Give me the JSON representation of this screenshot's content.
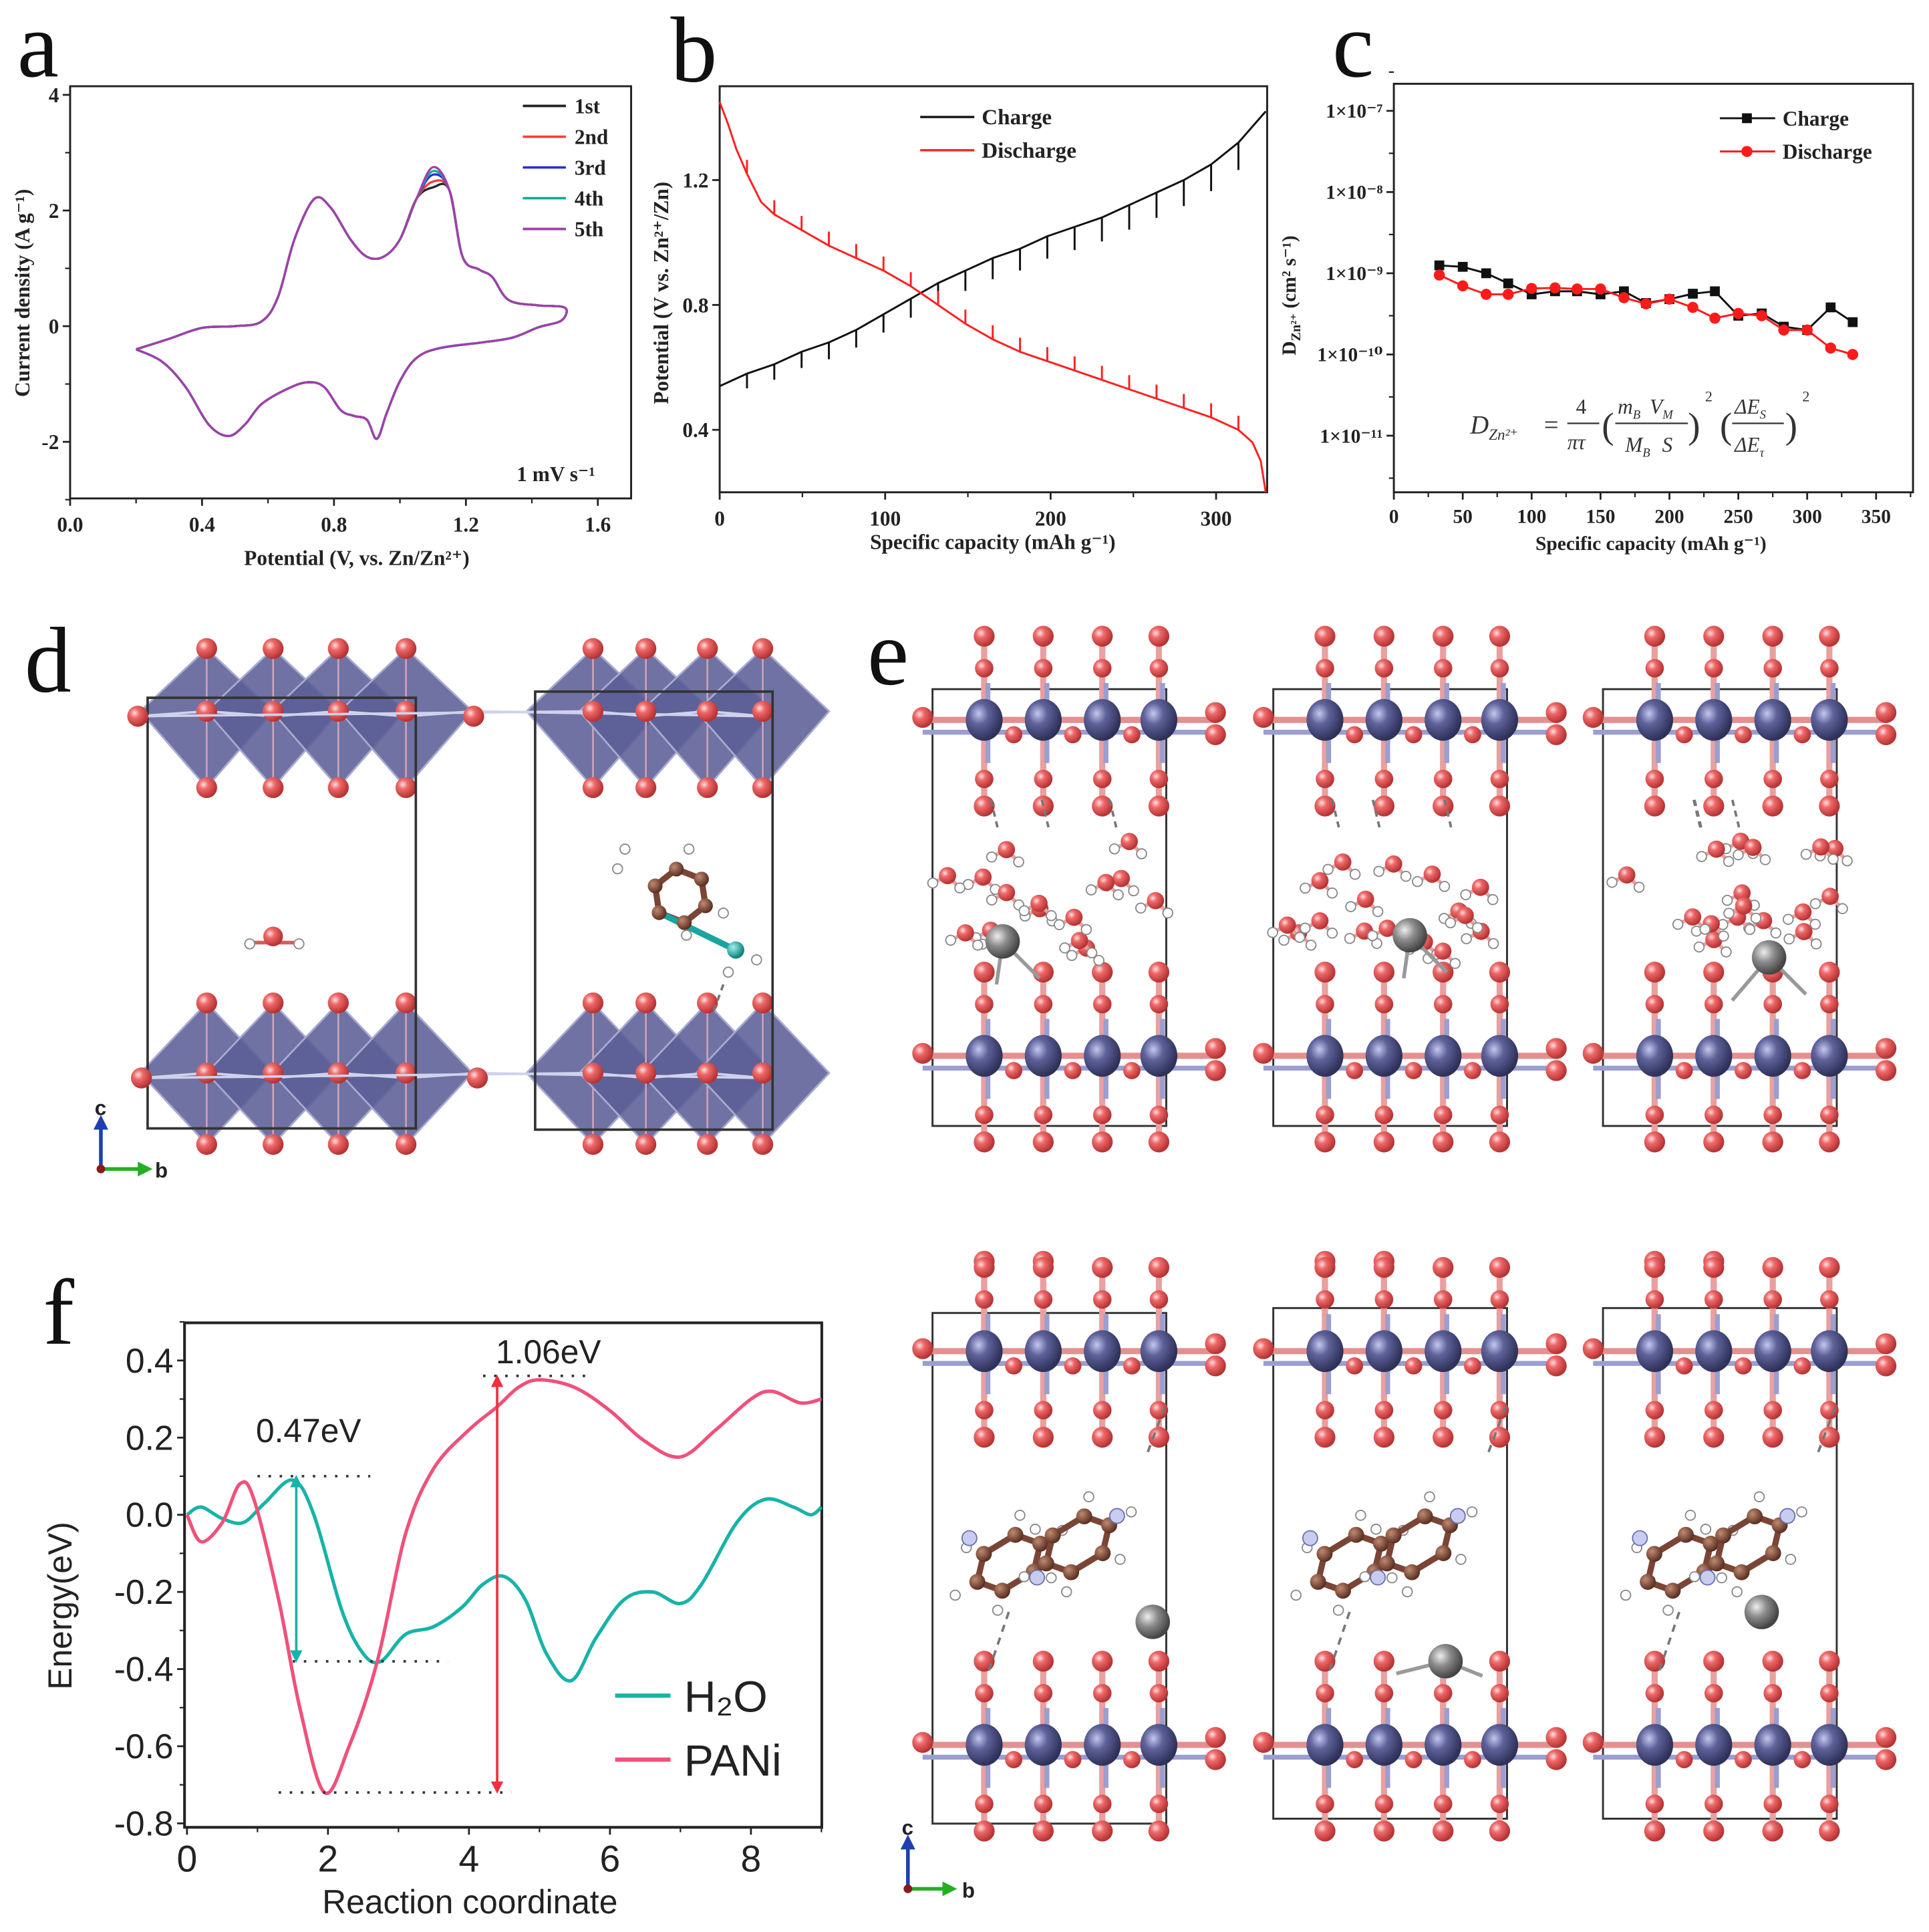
{
  "panel_labels": {
    "a": "a",
    "b": "b",
    "c": "c",
    "d": "d",
    "e": "e",
    "f": "f"
  },
  "structures": {
    "d_axes": {
      "c": "c",
      "a": "a",
      "b": "b"
    },
    "e_axes": {
      "c": "c",
      "a": "a",
      "b": "b"
    },
    "colors": {
      "oxygen": "#e0585a",
      "vanadium": "#5a5e96",
      "carbon": "#7a4536",
      "nitrogen": "#1aa5a0",
      "zinc": "#8a8a8a",
      "hydrogen": "#ffffff",
      "polyhedra": "#5b5f95"
    }
  },
  "chart_data": [
    {
      "panel": "a",
      "type": "line",
      "title": "",
      "xlabel": "Potential (V, vs. Zn/Zn²⁺)",
      "ylabel": "Current density (A g⁻¹)",
      "xlim": [
        0,
        1.7
      ],
      "ylim": [
        -3,
        4.15
      ],
      "xticks": [
        "0.0",
        "0.4",
        "0.8",
        "1.2",
        "1.6"
      ],
      "yticks": [
        "-2",
        "0",
        "2",
        "4"
      ],
      "annotation": "1 mV s⁻¹",
      "legend_position": "top-right",
      "base_curve": [
        [
          0.2,
          -0.4
        ],
        [
          0.3,
          -0.22
        ],
        [
          0.4,
          -0.03
        ],
        [
          0.5,
          0.0
        ],
        [
          0.58,
          0.08
        ],
        [
          0.63,
          0.5
        ],
        [
          0.68,
          1.5
        ],
        [
          0.74,
          2.2
        ],
        [
          0.79,
          2.05
        ],
        [
          0.85,
          1.5
        ],
        [
          0.9,
          1.2
        ],
        [
          0.95,
          1.2
        ],
        [
          1.0,
          1.5
        ],
        [
          1.05,
          2.2
        ],
        [
          1.1,
          2.6
        ],
        [
          1.15,
          2.35
        ],
        [
          1.19,
          1.2
        ],
        [
          1.24,
          0.98
        ],
        [
          1.28,
          0.85
        ],
        [
          1.33,
          0.45
        ],
        [
          1.42,
          0.36
        ],
        [
          1.5,
          0.32
        ],
        [
          1.49,
          0.1
        ],
        [
          1.42,
          -0.02
        ],
        [
          1.34,
          -0.2
        ],
        [
          1.25,
          -0.28
        ],
        [
          1.12,
          -0.38
        ],
        [
          1.05,
          -0.55
        ],
        [
          1.0,
          -0.95
        ],
        [
          0.96,
          -1.5
        ],
        [
          0.93,
          -1.95
        ],
        [
          0.9,
          -1.62
        ],
        [
          0.86,
          -1.55
        ],
        [
          0.82,
          -1.45
        ],
        [
          0.77,
          -1.05
        ],
        [
          0.72,
          -0.97
        ],
        [
          0.66,
          -1.08
        ],
        [
          0.58,
          -1.35
        ],
        [
          0.53,
          -1.7
        ],
        [
          0.48,
          -1.9
        ],
        [
          0.42,
          -1.7
        ],
        [
          0.35,
          -1.05
        ],
        [
          0.28,
          -0.62
        ],
        [
          0.2,
          -0.4
        ]
      ],
      "series": [
        {
          "name": "1st",
          "color": "#222222",
          "anodic_peak": 2.4
        },
        {
          "name": "2nd",
          "color": "#ff3b3b",
          "anodic_peak": 2.5
        },
        {
          "name": "3rd",
          "color": "#2b2bd6",
          "anodic_peak": 2.62
        },
        {
          "name": "4th",
          "color": "#12a89a",
          "anodic_peak": 2.68
        },
        {
          "name": "5th",
          "color": "#a040a8",
          "anodic_peak": 2.75
        }
      ]
    },
    {
      "panel": "b",
      "type": "line",
      "xlabel": "Specific capacity (mAh g⁻¹)",
      "ylabel": "Potential (V vs. Zn²⁺/Zn)",
      "xlim": [
        0,
        330
      ],
      "ylim": [
        0.2,
        1.5
      ],
      "xticks": [
        "0",
        "100",
        "200",
        "300"
      ],
      "yticks": [
        "0.4",
        "0.8",
        "1.2"
      ],
      "legend_position": "top-center",
      "series": [
        {
          "name": "Charge",
          "color": "#111111",
          "relaxation_amplitude": -0.045,
          "points": [
            [
              0,
              0.54
            ],
            [
              16.5,
              0.58
            ],
            [
              33,
              0.61
            ],
            [
              49.5,
              0.65
            ],
            [
              66,
              0.68
            ],
            [
              82.5,
              0.72
            ],
            [
              99,
              0.77
            ],
            [
              115.5,
              0.82
            ],
            [
              132,
              0.87
            ],
            [
              148.5,
              0.91
            ],
            [
              165,
              0.95
            ],
            [
              181.5,
              0.98
            ],
            [
              198,
              1.02
            ],
            [
              214.5,
              1.05
            ],
            [
              231,
              1.08
            ],
            [
              247.5,
              1.12
            ],
            [
              264,
              1.16
            ],
            [
              280.5,
              1.2
            ],
            [
              297,
              1.25
            ],
            [
              313.5,
              1.32
            ],
            [
              330,
              1.42
            ]
          ]
        },
        {
          "name": "Discharge",
          "color": "#ff2020",
          "relaxation_amplitude": 0.045,
          "points": [
            [
              0,
              1.45
            ],
            [
              5,
              1.38
            ],
            [
              10,
              1.3
            ],
            [
              16.5,
              1.22
            ],
            [
              25,
              1.13
            ],
            [
              33,
              1.09
            ],
            [
              49.5,
              1.04
            ],
            [
              66,
              0.99
            ],
            [
              82.5,
              0.95
            ],
            [
              99,
              0.91
            ],
            [
              115.5,
              0.86
            ],
            [
              132,
              0.8
            ],
            [
              148.5,
              0.74
            ],
            [
              165,
              0.69
            ],
            [
              181.5,
              0.65
            ],
            [
              198,
              0.62
            ],
            [
              214.5,
              0.59
            ],
            [
              231,
              0.56
            ],
            [
              247.5,
              0.53
            ],
            [
              264,
              0.5
            ],
            [
              280.5,
              0.47
            ],
            [
              297,
              0.44
            ],
            [
              313.5,
              0.4
            ],
            [
              322,
              0.36
            ],
            [
              327,
              0.3
            ],
            [
              330,
              0.2
            ]
          ]
        }
      ]
    },
    {
      "panel": "c",
      "type": "scatter",
      "xlabel": "Specific capacity (mAh g⁻¹)",
      "ylabel_main": "D",
      "ylabel_sub": "Zn²⁺",
      "ylabel_rest": " (cm² s⁻¹)",
      "xlim": [
        0,
        377
      ],
      "ylim": [
        2e-12,
        2.2e-07
      ],
      "yscale": "log",
      "xticks": [
        "0",
        "50",
        "100",
        "150",
        "200",
        "250",
        "300",
        "350"
      ],
      "yticks": [
        {
          "label": "1×10⁻⁷",
          "value": 1e-07
        },
        {
          "label": "1×10⁻⁸",
          "value": 1e-08
        },
        {
          "label": "1×10⁻⁹",
          "value": 1e-09
        },
        {
          "label": "1×10⁻¹⁰",
          "value": 1e-10
        },
        {
          "label": "1×10⁻¹¹",
          "value": 1e-11
        }
      ],
      "legend_position": "top-right",
      "formula": {
        "lhs": "D",
        "lhs_sub": "Zn²⁺",
        "eq": "=",
        "n1": "4",
        "d1": "πτ",
        "n2a": "m",
        "n2a_sub": "B",
        "n2b": "V",
        "n2b_sub": "M",
        "d2a": "M",
        "d2a_sub": "B",
        "d2b": "S",
        "n3": "ΔE",
        "n3_sub": "S",
        "d3": "ΔE",
        "d3_sub": "τ",
        "exp": "2"
      },
      "series": [
        {
          "name": "Charge",
          "color": "#111111",
          "marker": "square",
          "x": [
            33,
            50,
            67,
            83,
            100,
            117,
            133,
            150,
            167,
            183,
            200,
            217,
            233,
            250,
            267,
            283,
            300,
            317,
            333
          ],
          "y": [
            1.25e-09,
            1.2e-09,
            1e-09,
            7.5e-10,
            5.5e-10,
            6e-10,
            6e-10,
            5.5e-10,
            6e-10,
            4.3e-10,
            4.8e-10,
            5.6e-10,
            6e-10,
            3e-10,
            3.2e-10,
            2.2e-10,
            2e-10,
            3.8e-10,
            2.5e-10
          ]
        },
        {
          "name": "Discharge",
          "color": "#ff1a1a",
          "marker": "circle",
          "x": [
            33,
            50,
            67,
            83,
            100,
            117,
            133,
            150,
            167,
            183,
            200,
            217,
            233,
            250,
            267,
            283,
            300,
            317,
            333
          ],
          "y": [
            9.5e-10,
            7e-10,
            5.5e-10,
            5.5e-10,
            6.5e-10,
            6.6e-10,
            6.4e-10,
            6.4e-10,
            5e-10,
            4.2e-10,
            4.8e-10,
            3.8e-10,
            2.8e-10,
            3.2e-10,
            3e-10,
            2e-10,
            2e-10,
            1.2e-10,
            1e-10
          ]
        }
      ]
    },
    {
      "panel": "f",
      "type": "line",
      "xlabel": "Reaction coordinate",
      "ylabel": "Energy(eV)",
      "xlim": [
        0,
        9
      ],
      "ylim": [
        -0.8,
        0.5
      ],
      "xticks": [
        "0",
        "2",
        "4",
        "6",
        "8"
      ],
      "yticks": [
        "-0.8",
        "-0.6",
        "-0.4",
        "-0.2",
        "0.0",
        "0.2",
        "0.4"
      ],
      "legend_position": "bottom-right",
      "series": [
        {
          "name": "H₂O",
          "color": "#17b3a8",
          "points": [
            [
              0,
              0
            ],
            [
              0.2,
              0.02
            ],
            [
              0.5,
              -0.01
            ],
            [
              0.8,
              -0.02
            ],
            [
              1.1,
              0.03
            ],
            [
              1.5,
              0.09
            ],
            [
              1.8,
              0.0
            ],
            [
              2.2,
              -0.25
            ],
            [
              2.5,
              -0.36
            ],
            [
              2.75,
              -0.38
            ],
            [
              3.1,
              -0.31
            ],
            [
              3.5,
              -0.29
            ],
            [
              3.9,
              -0.24
            ],
            [
              4.2,
              -0.18
            ],
            [
              4.5,
              -0.16
            ],
            [
              4.8,
              -0.22
            ],
            [
              5.1,
              -0.36
            ],
            [
              5.45,
              -0.43
            ],
            [
              5.8,
              -0.32
            ],
            [
              6.2,
              -0.22
            ],
            [
              6.6,
              -0.2
            ],
            [
              7.0,
              -0.23
            ],
            [
              7.3,
              -0.18
            ],
            [
              7.8,
              -0.02
            ],
            [
              8.2,
              0.04
            ],
            [
              8.6,
              0.02
            ],
            [
              8.85,
              0.0
            ],
            [
              9.0,
              0.02
            ]
          ]
        },
        {
          "name": "PANi",
          "color": "#f0507a",
          "points": [
            [
              0,
              0
            ],
            [
              0.2,
              -0.07
            ],
            [
              0.5,
              -0.02
            ],
            [
              0.75,
              0.08
            ],
            [
              0.95,
              0.04
            ],
            [
              1.3,
              -0.22
            ],
            [
              1.6,
              -0.5
            ],
            [
              1.95,
              -0.72
            ],
            [
              2.3,
              -0.6
            ],
            [
              2.7,
              -0.38
            ],
            [
              3.1,
              -0.05
            ],
            [
              3.5,
              0.12
            ],
            [
              4.0,
              0.22
            ],
            [
              4.4,
              0.28
            ],
            [
              4.7,
              0.33
            ],
            [
              5.0,
              0.35
            ],
            [
              5.5,
              0.33
            ],
            [
              6.0,
              0.27
            ],
            [
              6.5,
              0.19
            ],
            [
              7.0,
              0.15
            ],
            [
              7.5,
              0.22
            ],
            [
              8.0,
              0.3
            ],
            [
              8.3,
              0.32
            ],
            [
              8.7,
              0.29
            ],
            [
              9.0,
              0.3
            ]
          ]
        }
      ],
      "annotations": [
        {
          "label": "0.47eV",
          "color": "#17b3a8",
          "arrow_x": 1.55,
          "high": 0.1,
          "low": -0.38,
          "high_span": [
            1.0,
            2.6
          ],
          "low_span": [
            1.5,
            3.7
          ]
        },
        {
          "label": "1.06eV",
          "color": "#f03040",
          "arrow_x": 4.4,
          "high": 0.36,
          "low": -0.72,
          "high_span": [
            4.2,
            5.7
          ],
          "low_span": [
            1.3,
            4.6
          ]
        }
      ]
    }
  ]
}
